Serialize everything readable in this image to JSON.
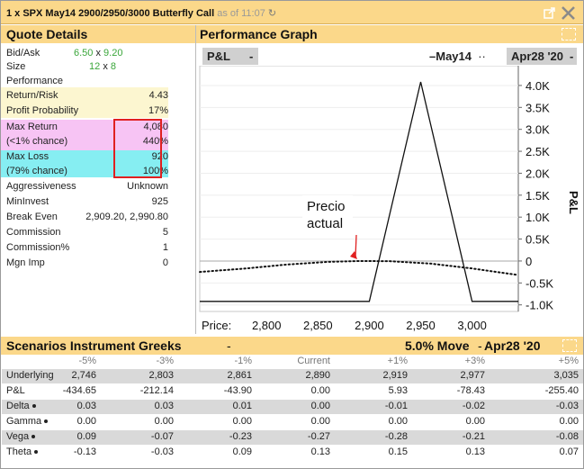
{
  "titlebar": {
    "title": "1 x SPX May14 2900/2950/3000 Butterfly Call",
    "asof": "as of 11:07"
  },
  "quote": {
    "header": "Quote Details",
    "bidask_label": "Bid/Ask",
    "bid": "6.50",
    "ask": "9.20",
    "size_label": "Size",
    "size_bid": "12",
    "size_ask": "8",
    "x": "x",
    "performance_label": "Performance",
    "rows": [
      {
        "label": "Return/Risk",
        "value": "4.43"
      },
      {
        "label": "Profit Probability",
        "value": "17%"
      },
      {
        "label": "Max Return",
        "value": "4,080"
      },
      {
        "label": "(<1% chance)",
        "value": "440%"
      },
      {
        "label": "Max Loss",
        "value": "920"
      },
      {
        "label": "(79% chance)",
        "value": "100%"
      },
      {
        "label": "Aggressiveness",
        "value": "Unknown"
      },
      {
        "label": "MinInvest",
        "value": "925"
      },
      {
        "label": "Break Even",
        "value": "2,909.20, 2,990.80"
      },
      {
        "label": "Commission",
        "value": "5"
      },
      {
        "label": "Commission%",
        "value": "1"
      },
      {
        "label": "Mgn Imp",
        "value": "0"
      }
    ]
  },
  "graph": {
    "header": "Performance Graph",
    "metric": "P&L",
    "legend": "May14",
    "date": "Apr28 '20",
    "annotation_line1": "Precio",
    "annotation_line2": "actual",
    "price_label": "Price:"
  },
  "chart_data": {
    "type": "line",
    "xlabel": "Price:",
    "ylabel": "P&L",
    "xlim": [
      2735,
      3045
    ],
    "ylim": [
      -1150,
      4450
    ],
    "x_ticks": [
      "2,800",
      "2,850",
      "2,900",
      "2,950",
      "3,000"
    ],
    "x_tick_values": [
      2800,
      2850,
      2900,
      2950,
      3000
    ],
    "y_ticks": [
      "4.0K",
      "3.5K",
      "3.0K",
      "2.5K",
      "2.0K",
      "1.5K",
      "1.0K",
      "0.5K",
      "0",
      "-0.5K",
      "-1.0K"
    ],
    "y_tick_values": [
      4000,
      3500,
      3000,
      2500,
      2000,
      1500,
      1000,
      500,
      0,
      -500,
      -1000
    ],
    "series": [
      {
        "name": "May14",
        "x": [
          2735,
          2900,
          2950,
          3000,
          3045
        ],
        "y": [
          -920,
          -920,
          4080,
          -920,
          -920
        ]
      },
      {
        "name": "Apr28 '20",
        "x": [
          2735,
          2780,
          2820,
          2860,
          2890,
          2920,
          2960,
          3000,
          3045
        ],
        "y": [
          -250,
          -170,
          -80,
          -20,
          0,
          -5,
          -60,
          -170,
          -320
        ]
      }
    ],
    "annotation": {
      "text": "Precio actual",
      "x": 2890,
      "y": 0
    }
  },
  "scenarios": {
    "header": "Scenarios Instrument Greeks",
    "move": "5.0% Move",
    "date": "Apr28 '20",
    "columns": [
      "-5%",
      "-3%",
      "-1%",
      "Current",
      "+1%",
      "+3%",
      "+5%"
    ],
    "rows": [
      {
        "label": "Underlying",
        "values": [
          "2,746",
          "2,803",
          "2,861",
          "2,890",
          "2,919",
          "2,977",
          "3,035"
        ]
      },
      {
        "label": "P&L",
        "values": [
          "-434.65",
          "-212.14",
          "-43.90",
          "0.00",
          "5.93",
          "-78.43",
          "-255.40"
        ]
      },
      {
        "label": "Delta",
        "values": [
          "0.03",
          "0.03",
          "0.01",
          "0.00",
          "-0.01",
          "-0.02",
          "-0.03"
        ]
      },
      {
        "label": "Gamma",
        "values": [
          "0.00",
          "0.00",
          "0.00",
          "0.00",
          "0.00",
          "0.00",
          "0.00"
        ]
      },
      {
        "label": "Vega",
        "values": [
          "0.09",
          "-0.07",
          "-0.23",
          "-0.27",
          "-0.28",
          "-0.21",
          "-0.08"
        ]
      },
      {
        "label": "Theta",
        "values": [
          "-0.13",
          "-0.03",
          "0.09",
          "0.13",
          "0.15",
          "0.13",
          "0.07"
        ]
      }
    ]
  },
  "colors": {
    "header_bg": "#fbd88a",
    "highlight_yellow": "#fcf6d0",
    "highlight_pink": "#f7c4f4",
    "highlight_cyan": "#86eef2",
    "red_box": "#e02020",
    "bid_ask_green": "#3aa63a"
  },
  "icons": {
    "refresh": "refresh-icon",
    "popout": "popout-icon",
    "close": "close-icon"
  }
}
